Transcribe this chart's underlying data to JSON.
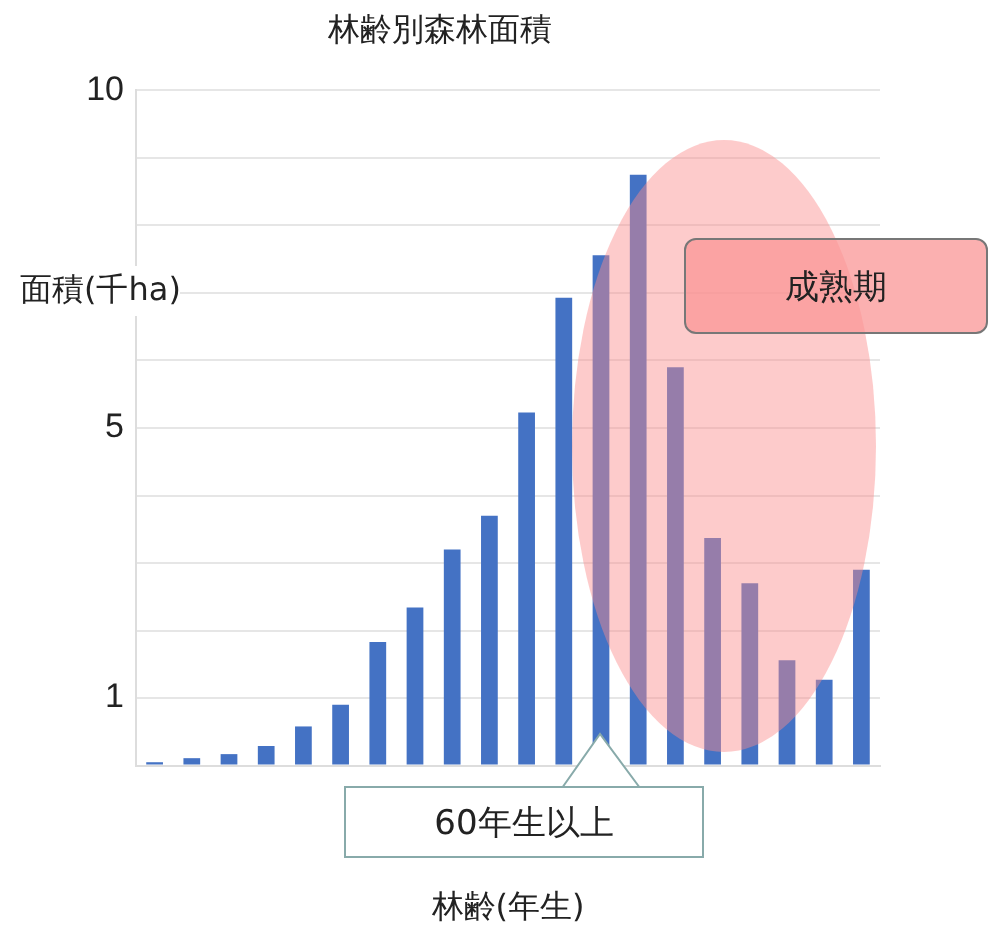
{
  "chart_data": {
    "type": "bar",
    "title": "林齢別森林面積",
    "xlabel": "林齢(年生)",
    "ylabel": "面積(千ha)",
    "categories": [
      null,
      null,
      null,
      null,
      null,
      null,
      null,
      null,
      null,
      null,
      null,
      null,
      null,
      null,
      null,
      null,
      null,
      null,
      null,
      null
    ],
    "values": [
      0.05,
      0.11,
      0.17,
      0.29,
      0.58,
      0.9,
      1.83,
      2.34,
      3.2,
      3.7,
      5.23,
      6.93,
      7.56,
      8.75,
      5.9,
      3.37,
      2.7,
      1.56,
      1.27,
      2.9
    ],
    "color": "#4472c4",
    "ylim": [
      0,
      10
    ],
    "yticks": [
      {
        "value": 0,
        "label": null
      },
      1,
      {
        "value": 2,
        "label": null
      },
      {
        "value": 3,
        "label": null
      },
      {
        "value": 4,
        "label": null
      },
      5,
      {
        "value": 6,
        "label": null
      },
      {
        "value": 7,
        "label": null
      },
      {
        "value": 8,
        "label": null
      },
      {
        "value": 9,
        "label": null
      },
      10
    ],
    "grid": "y",
    "tick_labels": "y",
    "legend": false,
    "annotations": [
      "成熟期",
      "60年生以上"
    ]
  }
}
